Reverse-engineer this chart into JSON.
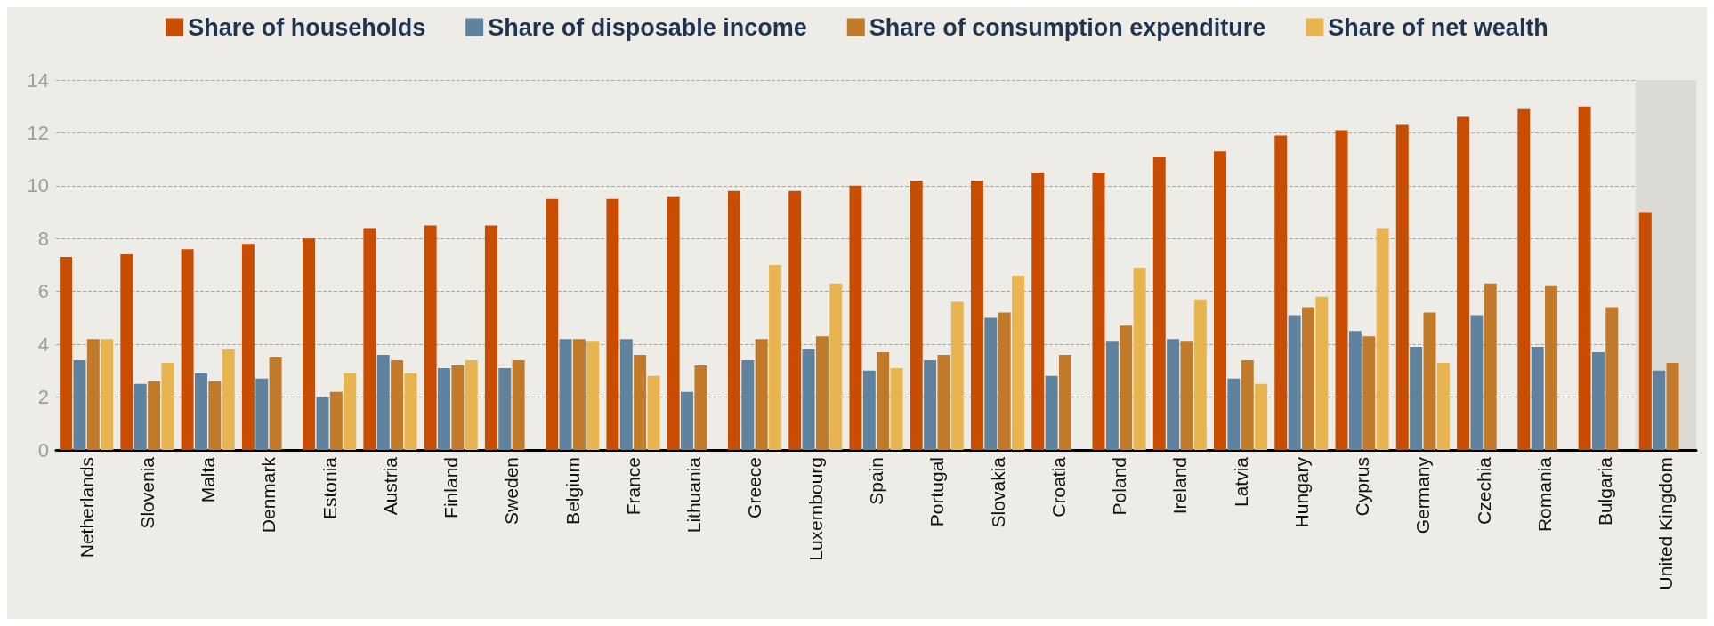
{
  "chart_data": {
    "type": "bar",
    "categories": [
      "Netherlands",
      "Slovenia",
      "Malta",
      "Denmark",
      "Estonia",
      "Austria",
      "Finland",
      "Sweden",
      "Belgium",
      "France",
      "Lithuania",
      "Greece",
      "Luxembourg",
      "Spain",
      "Portugal",
      "Slovakia",
      "Croatia",
      "Poland",
      "Ireland",
      "Latvia",
      "Hungary",
      "Cyprus",
      "Germany",
      "Czechia",
      "Romania",
      "Bulgaria",
      "United Kingdom"
    ],
    "series": [
      {
        "name": "Share of households",
        "color": "#c84d00",
        "values": [
          7.3,
          7.4,
          7.6,
          7.8,
          8.0,
          8.4,
          8.5,
          8.5,
          9.5,
          9.5,
          9.6,
          9.8,
          9.8,
          10.0,
          10.2,
          10.2,
          10.5,
          10.5,
          11.1,
          11.3,
          11.9,
          12.1,
          12.3,
          12.6,
          12.9,
          13.0,
          9.0
        ]
      },
      {
        "name": "Share of disposable income",
        "color": "#5f829e",
        "values": [
          3.4,
          2.5,
          2.9,
          2.7,
          2.0,
          3.6,
          3.1,
          3.1,
          4.2,
          4.2,
          2.2,
          3.4,
          3.8,
          3.0,
          3.4,
          5.0,
          2.8,
          4.1,
          4.2,
          2.7,
          5.1,
          4.5,
          3.9,
          5.1,
          3.9,
          3.7,
          3.0
        ]
      },
      {
        "name": "Share of consumption expenditure",
        "color": "#c07a2a",
        "values": [
          4.2,
          2.6,
          2.6,
          3.5,
          2.2,
          3.4,
          3.2,
          3.4,
          4.2,
          3.6,
          3.2,
          4.2,
          4.3,
          3.7,
          3.6,
          5.2,
          3.6,
          4.7,
          4.1,
          3.4,
          5.4,
          4.3,
          5.2,
          6.3,
          6.2,
          5.4,
          3.3
        ]
      },
      {
        "name": "Share of net wealth",
        "color": "#e8b450",
        "values": [
          4.2,
          3.3,
          3.8,
          null,
          2.9,
          2.9,
          3.4,
          null,
          4.1,
          2.8,
          null,
          7.0,
          6.3,
          3.1,
          5.6,
          6.6,
          null,
          6.9,
          5.7,
          2.5,
          5.8,
          8.4,
          3.3,
          null,
          null,
          null,
          null
        ]
      }
    ],
    "ylim": [
      0,
      14
    ],
    "yticks": [
      0,
      2,
      4,
      6,
      8,
      10,
      12,
      14
    ],
    "grid": "y",
    "legend": "top",
    "bands": [
      {
        "axis": "x",
        "from": "United Kingdom",
        "to": "United Kingdom",
        "color": "#dcdad4"
      }
    ]
  }
}
